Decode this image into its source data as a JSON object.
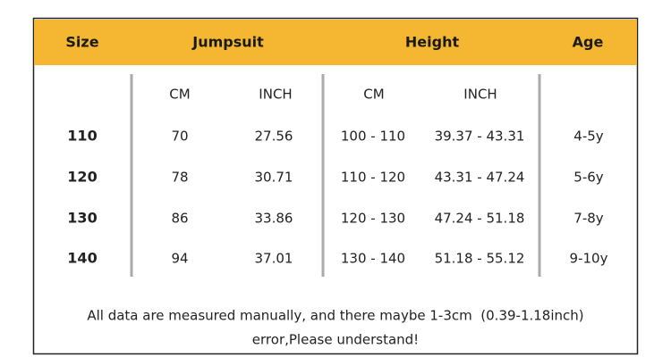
{
  "table": {
    "header": [
      "Size",
      "Jumpsuit",
      "Height",
      "Age"
    ],
    "subheader": [
      "CM",
      "INCH",
      "CM",
      "INCH"
    ],
    "rows": [
      [
        "110",
        "70",
        "27.56",
        "100 - 110",
        "39.37 - 43.31",
        "4-5y"
      ],
      [
        "120",
        "78",
        "30.71",
        "110 - 120",
        "43.31 - 47.24",
        "5-6y"
      ],
      [
        "130",
        "86",
        "33.86",
        "120 - 130",
        "47.24 - 51.18",
        "7-8y"
      ],
      [
        "140",
        "94",
        "37.01",
        "130 - 140",
        "51.18 - 55.12",
        "9-10y"
      ]
    ]
  },
  "footer": [
    "All data are measured manually, and there maybe 1-3cm  (0.39-1.18inch)",
    "error,Please understand!"
  ]
}
